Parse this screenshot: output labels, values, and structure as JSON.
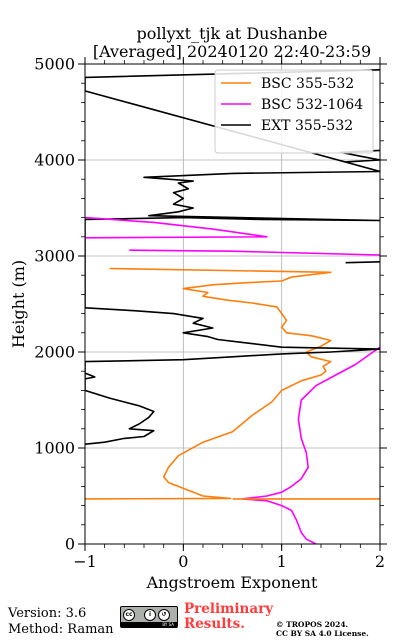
{
  "chart_data": {
    "type": "line",
    "title": "pollyxt_tjk at Dushanbe",
    "subtitle": "[Averaged] 20240120 22:40-23:59",
    "xlabel": "Angstroem Exponent",
    "ylabel": "Height (m)",
    "xlim": [
      -1,
      2
    ],
    "ylim": [
      0,
      5000
    ],
    "xticks": [
      "-1",
      "0",
      "1",
      "2"
    ],
    "yticks": [
      "0",
      "1000",
      "2000",
      "3000",
      "4000",
      "5000"
    ],
    "grid": true,
    "legend_position": "top-right",
    "series": [
      {
        "name": "BSC 355-532",
        "color": "#ff7f0e",
        "points": [
          [
            -1.0,
            470
          ],
          [
            0.48,
            475
          ],
          [
            0.2,
            500
          ],
          [
            0.05,
            560
          ],
          [
            -0.15,
            640
          ],
          [
            -0.2,
            700
          ],
          [
            -0.15,
            800
          ],
          [
            -0.05,
            920
          ],
          [
            0.2,
            1060
          ],
          [
            0.5,
            1170
          ],
          [
            0.7,
            1340
          ],
          [
            0.9,
            1480
          ],
          [
            1.0,
            1600
          ],
          [
            1.2,
            1700
          ],
          [
            1.4,
            1760
          ],
          [
            1.45,
            1800
          ],
          [
            1.42,
            1850
          ],
          [
            1.5,
            1900
          ],
          [
            1.3,
            1950
          ],
          [
            1.25,
            2000
          ],
          [
            1.4,
            2060
          ],
          [
            1.5,
            2120
          ],
          [
            1.3,
            2170
          ],
          [
            1.05,
            2200
          ],
          [
            1.0,
            2260
          ],
          [
            1.05,
            2330
          ],
          [
            1.0,
            2400
          ],
          [
            0.95,
            2470
          ],
          [
            0.7,
            2510
          ],
          [
            0.45,
            2540
          ],
          [
            0.2,
            2580
          ],
          [
            0.25,
            2620
          ],
          [
            0.0,
            2660
          ],
          [
            0.3,
            2700
          ],
          [
            0.6,
            2720
          ],
          [
            1.0,
            2740
          ],
          [
            1.1,
            2780
          ],
          [
            1.5,
            2830
          ],
          [
            -0.75,
            2870
          ]
        ]
      },
      {
        "name": "BSC 532-1064",
        "color": "#ff00ff",
        "points": [
          [
            1.35,
            0
          ],
          [
            1.25,
            50
          ],
          [
            1.2,
            120
          ],
          [
            1.15,
            250
          ],
          [
            1.1,
            350
          ],
          [
            1.0,
            400
          ],
          [
            0.85,
            450
          ],
          [
            0.6,
            470
          ],
          [
            0.85,
            500
          ],
          [
            1.0,
            540
          ],
          [
            1.1,
            600
          ],
          [
            1.2,
            680
          ],
          [
            1.27,
            800
          ],
          [
            1.25,
            950
          ],
          [
            1.2,
            1100
          ],
          [
            1.17,
            1300
          ],
          [
            1.2,
            1500
          ],
          [
            1.35,
            1650
          ],
          [
            1.55,
            1760
          ],
          [
            1.75,
            1870
          ],
          [
            2.0,
            2050
          ]
        ]
      },
      {
        "name": "EXT 355-532",
        "color": "#000000",
        "points": [
          [
            -1.0,
            1040
          ],
          [
            -0.8,
            1060
          ],
          [
            -0.6,
            1100
          ],
          [
            -0.4,
            1120
          ],
          [
            -0.3,
            1180
          ],
          [
            -0.55,
            1200
          ],
          [
            -0.45,
            1250
          ],
          [
            -0.35,
            1320
          ],
          [
            -0.3,
            1380
          ],
          [
            -0.45,
            1440
          ],
          [
            -0.75,
            1520
          ],
          [
            -1.0,
            1600
          ],
          [
            -1.0,
            1900
          ],
          [
            0.0,
            1920
          ],
          [
            0.5,
            1950
          ],
          [
            1.0,
            1980
          ],
          [
            1.5,
            2000
          ],
          [
            2.0,
            2030
          ],
          [
            1.0,
            2050
          ],
          [
            0.6,
            2100
          ],
          [
            0.35,
            2130
          ],
          [
            0.25,
            2160
          ],
          [
            0.0,
            2200
          ],
          [
            0.3,
            2250
          ],
          [
            0.1,
            2300
          ],
          [
            0.2,
            2350
          ],
          [
            -0.1,
            2400
          ],
          [
            -0.5,
            2430
          ],
          [
            -1.0,
            2460
          ],
          [
            -1.0,
            3380
          ],
          [
            0.0,
            3400
          ],
          [
            0.8,
            3380
          ],
          [
            2.0,
            3370
          ],
          [
            -0.35,
            3420
          ],
          [
            -0.05,
            3460
          ],
          [
            0.1,
            3500
          ],
          [
            -0.1,
            3540
          ],
          [
            0.0,
            3600
          ],
          [
            -0.1,
            3660
          ],
          [
            0.05,
            3700
          ],
          [
            -0.05,
            3760
          ],
          [
            0.1,
            3780
          ],
          [
            -0.4,
            3820
          ],
          [
            0.5,
            3860
          ],
          [
            2.0,
            3880
          ],
          [
            -1.0,
            4720
          ],
          [
            -1.0,
            4860
          ],
          [
            2.0,
            4940
          ]
        ]
      },
      {
        "name": "",
        "color": "#ff00ff",
        "points": [
          [
            -1.0,
            3190
          ],
          [
            0.85,
            3200
          ],
          [
            0.3,
            3280
          ],
          [
            -0.3,
            3350
          ],
          [
            -1.0,
            3400
          ]
        ]
      },
      {
        "name": "",
        "color": "#ff00ff",
        "points": [
          [
            -0.55,
            3060
          ],
          [
            0.5,
            3050
          ],
          [
            2.0,
            3010
          ]
        ]
      },
      {
        "name": "",
        "color": "#ff7f0e",
        "points": [
          [
            0.5,
            470
          ],
          [
            2.0,
            470
          ]
        ]
      },
      {
        "name": "",
        "color": "#000000",
        "points": [
          [
            -1.0,
            1720
          ],
          [
            -0.9,
            1740
          ],
          [
            -0.95,
            1760
          ],
          [
            -1.0,
            1780
          ]
        ]
      },
      {
        "name": "",
        "color": "#000000",
        "points": [
          [
            1.65,
            3980
          ],
          [
            2.0,
            4000
          ],
          [
            1.8,
            4040
          ],
          [
            1.6,
            4080
          ],
          [
            2.0,
            4100
          ]
        ]
      },
      {
        "name": "",
        "color": "#000000",
        "points": [
          [
            1.65,
            2930
          ],
          [
            2.0,
            2940
          ]
        ]
      }
    ]
  },
  "footer": {
    "version": "Version: 3.6",
    "method": "Method: Raman",
    "preliminary_1": "Preliminary",
    "preliminary_2": "Results.",
    "copyright_1": "© TROPOS 2024.",
    "copyright_2": "CC BY SA 4.0 License."
  },
  "badge": {
    "cc": "cc",
    "by": "BY",
    "sa": "SA"
  }
}
